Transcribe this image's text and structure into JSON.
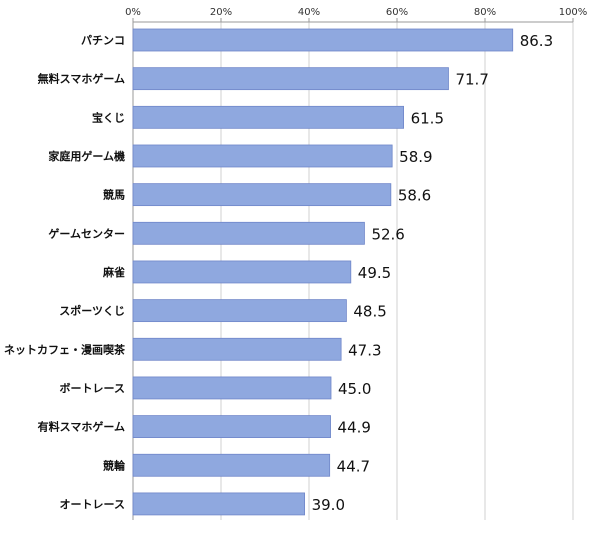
{
  "chart_data": {
    "type": "bar",
    "orientation": "horizontal",
    "categories": [
      "パチンコ",
      "無料スマホゲーム",
      "宝くじ",
      "家庭用ゲーム機",
      "競馬",
      "ゲームセンター",
      "麻雀",
      "スポーツくじ",
      "ネットカフェ・漫画喫茶",
      "ボートレース",
      "有料スマホゲーム",
      "競輪",
      "オートレース"
    ],
    "values": [
      86.3,
      71.7,
      61.5,
      58.9,
      58.6,
      52.6,
      49.5,
      48.5,
      47.3,
      45.0,
      44.9,
      44.7,
      39.0
    ],
    "value_labels": [
      "86.3",
      "71.7",
      "61.5",
      "58.9",
      "58.6",
      "52.6",
      "49.5",
      "48.5",
      "47.3",
      "45.0",
      "44.9",
      "44.7",
      "39.0"
    ],
    "xlim": [
      0,
      100
    ],
    "ticks": [
      0,
      20,
      40,
      60,
      80,
      100
    ],
    "tick_labels": [
      "0%",
      "20%",
      "40%",
      "60%",
      "80%",
      "100%"
    ],
    "xaxis_position": "top",
    "grid": true,
    "legend": "none",
    "title": "",
    "xlabel": "",
    "ylabel": "",
    "bar_color": "#8fa8df"
  }
}
